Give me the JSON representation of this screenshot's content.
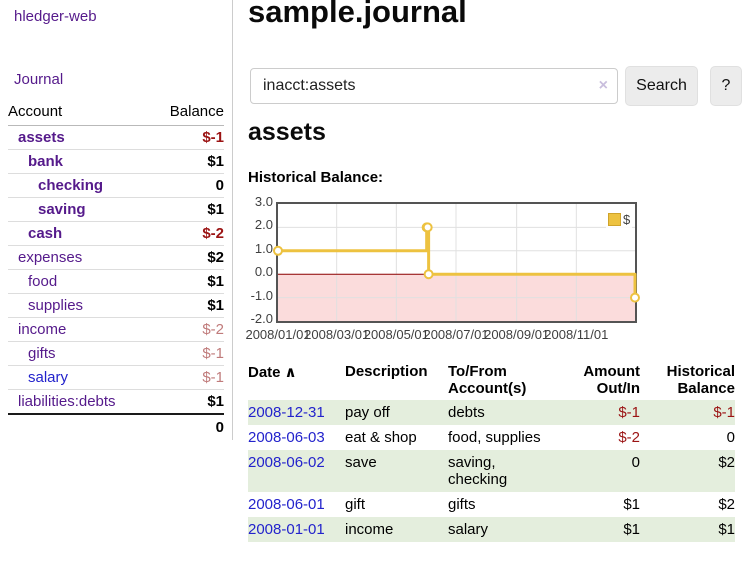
{
  "app": {
    "brand": "hledger-web"
  },
  "sidebar": {
    "journal_label": "Journal",
    "accounts": {
      "header_account": "Account",
      "header_balance": "Balance",
      "rows": [
        {
          "name": "assets",
          "depth": 1,
          "emph": true,
          "balance": "$-1",
          "balance_tone": "neg",
          "link_tone": ""
        },
        {
          "name": "bank",
          "depth": 2,
          "emph": true,
          "balance": "$1",
          "balance_tone": "",
          "link_tone": ""
        },
        {
          "name": "checking",
          "depth": 3,
          "emph": true,
          "balance": "0",
          "balance_tone": "",
          "link_tone": ""
        },
        {
          "name": "saving",
          "depth": 3,
          "emph": true,
          "balance": "$1",
          "balance_tone": "",
          "link_tone": ""
        },
        {
          "name": "cash",
          "depth": 2,
          "emph": true,
          "balance": "$-2",
          "balance_tone": "neg",
          "link_tone": ""
        },
        {
          "name": "expenses",
          "depth": 1,
          "emph": false,
          "balance": "$2",
          "balance_tone": "",
          "link_tone": ""
        },
        {
          "name": "food",
          "depth": 2,
          "emph": false,
          "balance": "$1",
          "balance_tone": "",
          "link_tone": ""
        },
        {
          "name": "supplies",
          "depth": 2,
          "emph": false,
          "balance": "$1",
          "balance_tone": "",
          "link_tone": ""
        },
        {
          "name": "income",
          "depth": 1,
          "emph": false,
          "balance": "$-2",
          "balance_tone": "neg-soft",
          "link_tone": ""
        },
        {
          "name": "gifts",
          "depth": 2,
          "emph": false,
          "balance": "$-1",
          "balance_tone": "neg-soft",
          "link_tone": ""
        },
        {
          "name": "salary",
          "depth": 2,
          "emph": false,
          "balance": "$-1",
          "balance_tone": "neg-soft",
          "link_tone": "blue"
        },
        {
          "name": "liabilities:debts",
          "depth": 1,
          "emph": false,
          "balance": "$1",
          "balance_tone": "",
          "link_tone": ""
        }
      ],
      "total": "0"
    }
  },
  "main": {
    "title": "sample.journal"
  },
  "search": {
    "value": "inacct:assets",
    "clear_icon": "×",
    "button_label": "Search",
    "help_label": "?"
  },
  "account": {
    "heading": "assets",
    "chart_title": "Historical Balance:"
  },
  "chart_data": {
    "type": "line",
    "step": true,
    "title": "Historical Balance:",
    "series": [
      {
        "name": "$",
        "color": "#edc240",
        "points": [
          {
            "date": "2008/01/01",
            "day": 0,
            "value": 1.0
          },
          {
            "date": "2008/06/01",
            "day": 152,
            "value": 2.0
          },
          {
            "date": "2008/06/02",
            "day": 153,
            "value": 2.0
          },
          {
            "date": "2008/06/03",
            "day": 154,
            "value": 0.0
          },
          {
            "date": "2008/12/31",
            "day": 365,
            "value": -1.0
          }
        ]
      }
    ],
    "xlim_days": [
      0,
      365
    ],
    "ylim": [
      -2.0,
      3.0
    ],
    "y_ticks": [
      {
        "value": 3.0,
        "label": "3.0"
      },
      {
        "value": 2.0,
        "label": "2.0"
      },
      {
        "value": 1.0,
        "label": "1.0"
      },
      {
        "value": 0.0,
        "label": "0.0"
      },
      {
        "value": -1.0,
        "label": "-1.0"
      },
      {
        "value": -2.0,
        "label": "-2.0"
      }
    ],
    "x_ticks": [
      {
        "day": 0,
        "label": "2008/01/01"
      },
      {
        "day": 60,
        "label": "2008/03/01"
      },
      {
        "day": 121,
        "label": "2008/05/01"
      },
      {
        "day": 182,
        "label": "2008/07/01"
      },
      {
        "day": 244,
        "label": "2008/09/01"
      },
      {
        "day": 305,
        "label": "2008/11/01"
      }
    ],
    "legend": {
      "label": "$",
      "position": "top-right"
    },
    "grid": true,
    "colors": {
      "negative_region": "#fbdcdc",
      "zero_line": "#8b0000",
      "gridline": "#e0e0e0",
      "border": "#545454",
      "marker_fill": "#ffffff"
    }
  },
  "register": {
    "sort_icon": "∧",
    "headers": {
      "date": "Date",
      "description": "Description",
      "accounts": "To/From Account(s)",
      "amount": "Amount Out/In",
      "balance": "Historical Balance"
    },
    "rows": [
      {
        "date": "2008-12-31",
        "description": "pay off",
        "accounts": "debts",
        "amount": "$-1",
        "amount_tone": "neg",
        "balance": "$-1",
        "balance_tone": "neg"
      },
      {
        "date": "2008-06-03",
        "description": "eat & shop",
        "accounts": "food, supplies",
        "amount": "$-2",
        "amount_tone": "neg",
        "balance": "0",
        "balance_tone": ""
      },
      {
        "date": "2008-06-02",
        "description": "save",
        "accounts": "saving, checking",
        "amount": "0",
        "amount_tone": "",
        "balance": "$2",
        "balance_tone": ""
      },
      {
        "date": "2008-06-01",
        "description": "gift",
        "accounts": "gifts",
        "amount": "$1",
        "amount_tone": "",
        "balance": "$2",
        "balance_tone": ""
      },
      {
        "date": "2008-01-01",
        "description": "income",
        "accounts": "salary",
        "amount": "$1",
        "amount_tone": "",
        "balance": "$1",
        "balance_tone": ""
      }
    ]
  }
}
